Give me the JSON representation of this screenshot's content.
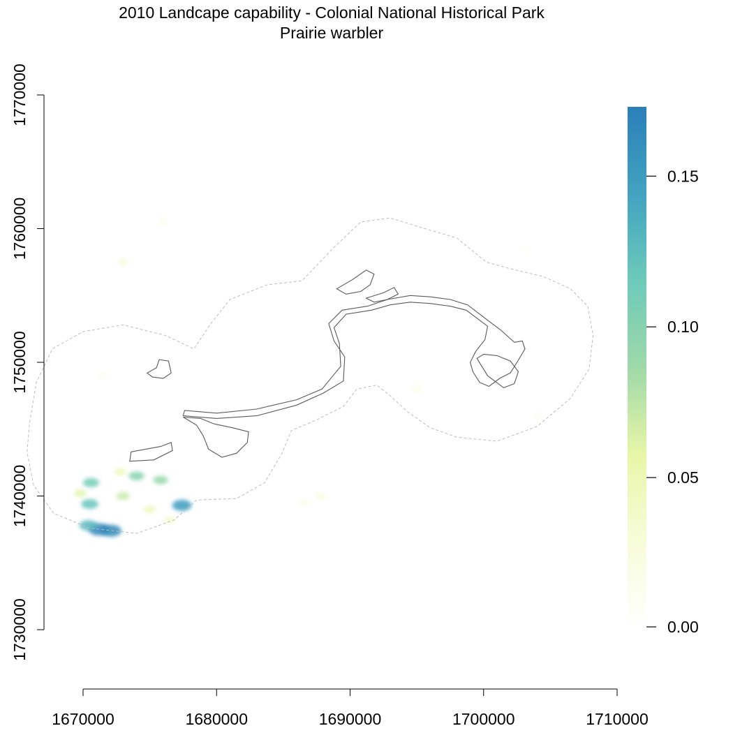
{
  "title": {
    "line1": "2010 Landcape capability - Colonial National Historical Park",
    "line2": "Prairie warbler"
  },
  "chart_data": {
    "type": "heatmap",
    "x_axis": {
      "range": [
        1670000,
        1710000
      ],
      "ticks": [
        1670000,
        1680000,
        1690000,
        1700000,
        1710000
      ],
      "tick_labels": [
        "1670000",
        "1680000",
        "1690000",
        "1700000",
        "1710000"
      ]
    },
    "y_axis": {
      "range": [
        1730000,
        1770000
      ],
      "ticks": [
        1730000,
        1740000,
        1750000,
        1760000,
        1770000
      ],
      "tick_labels": [
        "1730000",
        "1740000",
        "1750000",
        "1760000",
        "1770000"
      ]
    },
    "legend": {
      "placement": "right",
      "range": [
        0.0,
        0.173
      ],
      "ticks": [
        0.0,
        0.05,
        0.1,
        0.15
      ],
      "tick_labels": [
        "0.00",
        "0.05",
        "0.10",
        "0.15"
      ],
      "colors": [
        "#FFFFFF",
        "#F7FCD8",
        "#E8F6A8",
        "#9ED9A8",
        "#6DCABA",
        "#41A3C0",
        "#2B7FB8"
      ]
    },
    "grid": false,
    "capability_patches": [
      {
        "x": 1671200,
        "y": 1737500,
        "value": 0.17
      },
      {
        "x": 1672100,
        "y": 1737400,
        "value": 0.165
      },
      {
        "x": 1670400,
        "y": 1737800,
        "value": 0.13
      },
      {
        "x": 1677400,
        "y": 1739300,
        "value": 0.15
      },
      {
        "x": 1670500,
        "y": 1739400,
        "value": 0.12
      },
      {
        "x": 1670600,
        "y": 1741000,
        "value": 0.11
      },
      {
        "x": 1674000,
        "y": 1741500,
        "value": 0.1
      },
      {
        "x": 1675800,
        "y": 1741200,
        "value": 0.09
      },
      {
        "x": 1673000,
        "y": 1740000,
        "value": 0.07
      },
      {
        "x": 1669800,
        "y": 1740200,
        "value": 0.06
      },
      {
        "x": 1675000,
        "y": 1739000,
        "value": 0.05
      },
      {
        "x": 1676500,
        "y": 1738200,
        "value": 0.04
      },
      {
        "x": 1672800,
        "y": 1741800,
        "value": 0.05
      },
      {
        "x": 1687800,
        "y": 1740000,
        "value": 0.03
      },
      {
        "x": 1686500,
        "y": 1739500,
        "value": 0.02
      },
      {
        "x": 1673000,
        "y": 1757500,
        "value": 0.03
      },
      {
        "x": 1695000,
        "y": 1748000,
        "value": 0.02
      },
      {
        "x": 1704000,
        "y": 1746000,
        "value": 0.015
      },
      {
        "x": 1671500,
        "y": 1749000,
        "value": 0.015
      },
      {
        "x": 1676000,
        "y": 1760500,
        "value": 0.015
      },
      {
        "x": 1703000,
        "y": 1758500,
        "value": 0.01
      }
    ],
    "park_boundary": [
      [
        [
          1677500,
          1746000
        ],
        [
          1680000,
          1745800
        ],
        [
          1683000,
          1746000
        ],
        [
          1686000,
          1746800
        ],
        [
          1688000,
          1747700
        ],
        [
          1689500,
          1748600
        ],
        [
          1689600,
          1750400
        ],
        [
          1688800,
          1751600
        ],
        [
          1688400,
          1752900
        ],
        [
          1689400,
          1753900
        ],
        [
          1691300,
          1754200
        ],
        [
          1692800,
          1754700
        ],
        [
          1694500,
          1755000
        ],
        [
          1696000,
          1754900
        ],
        [
          1697500,
          1754700
        ],
        [
          1698800,
          1754300
        ],
        [
          1700100,
          1753300
        ],
        [
          1701300,
          1752400
        ],
        [
          1702300,
          1751500
        ],
        [
          1702900,
          1751600
        ],
        [
          1703100,
          1751000
        ],
        [
          1702500,
          1750000
        ],
        [
          1702000,
          1749200
        ],
        [
          1701200,
          1748800
        ],
        [
          1700400,
          1748200
        ],
        [
          1699700,
          1748500
        ],
        [
          1699200,
          1749300
        ],
        [
          1699000,
          1750000
        ],
        [
          1699400,
          1750800
        ],
        [
          1700100,
          1751700
        ],
        [
          1700300,
          1752700
        ],
        [
          1699500,
          1753300
        ],
        [
          1698700,
          1753900
        ],
        [
          1697500,
          1754200
        ],
        [
          1696000,
          1754400
        ],
        [
          1694500,
          1754500
        ],
        [
          1693000,
          1754300
        ],
        [
          1691600,
          1753900
        ],
        [
          1689700,
          1753600
        ],
        [
          1688800,
          1752600
        ],
        [
          1689200,
          1751400
        ],
        [
          1689300,
          1749700
        ],
        [
          1687900,
          1748000
        ],
        [
          1686000,
          1747200
        ],
        [
          1683000,
          1746500
        ],
        [
          1680000,
          1746200
        ],
        [
          1677600,
          1746400
        ]
      ],
      [
        [
          1677500,
          1745900
        ],
        [
          1678500,
          1745300
        ],
        [
          1679000,
          1744500
        ],
        [
          1679400,
          1743500
        ],
        [
          1680400,
          1742900
        ],
        [
          1681500,
          1743200
        ],
        [
          1682300,
          1744000
        ],
        [
          1682400,
          1744800
        ],
        [
          1681200,
          1745100
        ],
        [
          1679800,
          1745400
        ],
        [
          1678800,
          1745800
        ]
      ],
      [
        [
          1673600,
          1743300
        ],
        [
          1675800,
          1743700
        ],
        [
          1676600,
          1744000
        ],
        [
          1676700,
          1743400
        ],
        [
          1675300,
          1742700
        ],
        [
          1673500,
          1742600
        ]
      ],
      [
        [
          1674800,
          1749200
        ],
        [
          1675500,
          1749600
        ],
        [
          1675700,
          1750200
        ],
        [
          1676400,
          1750100
        ],
        [
          1676600,
          1749200
        ],
        [
          1676000,
          1748800
        ],
        [
          1675200,
          1748900
        ]
      ],
      [
        [
          1689000,
          1755500
        ],
        [
          1690200,
          1756200
        ],
        [
          1691200,
          1756900
        ],
        [
          1691800,
          1756600
        ],
        [
          1691500,
          1755800
        ],
        [
          1690800,
          1755300
        ],
        [
          1689700,
          1755100
        ]
      ],
      [
        [
          1691200,
          1754800
        ],
        [
          1692500,
          1755200
        ],
        [
          1693300,
          1755600
        ],
        [
          1693600,
          1755100
        ],
        [
          1692800,
          1754700
        ],
        [
          1691800,
          1754500
        ]
      ],
      [
        [
          1699500,
          1750300
        ],
        [
          1700300,
          1749000
        ],
        [
          1701500,
          1748100
        ],
        [
          1702300,
          1748400
        ],
        [
          1702600,
          1749300
        ],
        [
          1702000,
          1750100
        ],
        [
          1701000,
          1750500
        ],
        [
          1700000,
          1750600
        ]
      ]
    ],
    "study_area_buffer": [
      [
        1666000,
        1745500
      ],
      [
        1666500,
        1748500
      ],
      [
        1667700,
        1751000
      ],
      [
        1670000,
        1752300
      ],
      [
        1673000,
        1752800
      ],
      [
        1676200,
        1752000
      ],
      [
        1678300,
        1751000
      ],
      [
        1679500,
        1752800
      ],
      [
        1681000,
        1754700
      ],
      [
        1683800,
        1755800
      ],
      [
        1686400,
        1756100
      ],
      [
        1688800,
        1758600
      ],
      [
        1690800,
        1760500
      ],
      [
        1693000,
        1760800
      ],
      [
        1695600,
        1760000
      ],
      [
        1698000,
        1759300
      ],
      [
        1700200,
        1757500
      ],
      [
        1702000,
        1757000
      ],
      [
        1704500,
        1756400
      ],
      [
        1706500,
        1755500
      ],
      [
        1707800,
        1754200
      ],
      [
        1708200,
        1752000
      ],
      [
        1707900,
        1749500
      ],
      [
        1706500,
        1747300
      ],
      [
        1704000,
        1745200
      ],
      [
        1701000,
        1744100
      ],
      [
        1698000,
        1744400
      ],
      [
        1696000,
        1745100
      ],
      [
        1694300,
        1746300
      ],
      [
        1693000,
        1747500
      ],
      [
        1692000,
        1748300
      ],
      [
        1690500,
        1748000
      ],
      [
        1689500,
        1746700
      ],
      [
        1687500,
        1745700
      ],
      [
        1685600,
        1744900
      ],
      [
        1684900,
        1743200
      ],
      [
        1683600,
        1741000
      ],
      [
        1681500,
        1739800
      ],
      [
        1678500,
        1739700
      ],
      [
        1676800,
        1738200
      ],
      [
        1674000,
        1737200
      ],
      [
        1670500,
        1737600
      ],
      [
        1667800,
        1738700
      ],
      [
        1666300,
        1740800
      ],
      [
        1665800,
        1743300
      ]
    ]
  }
}
